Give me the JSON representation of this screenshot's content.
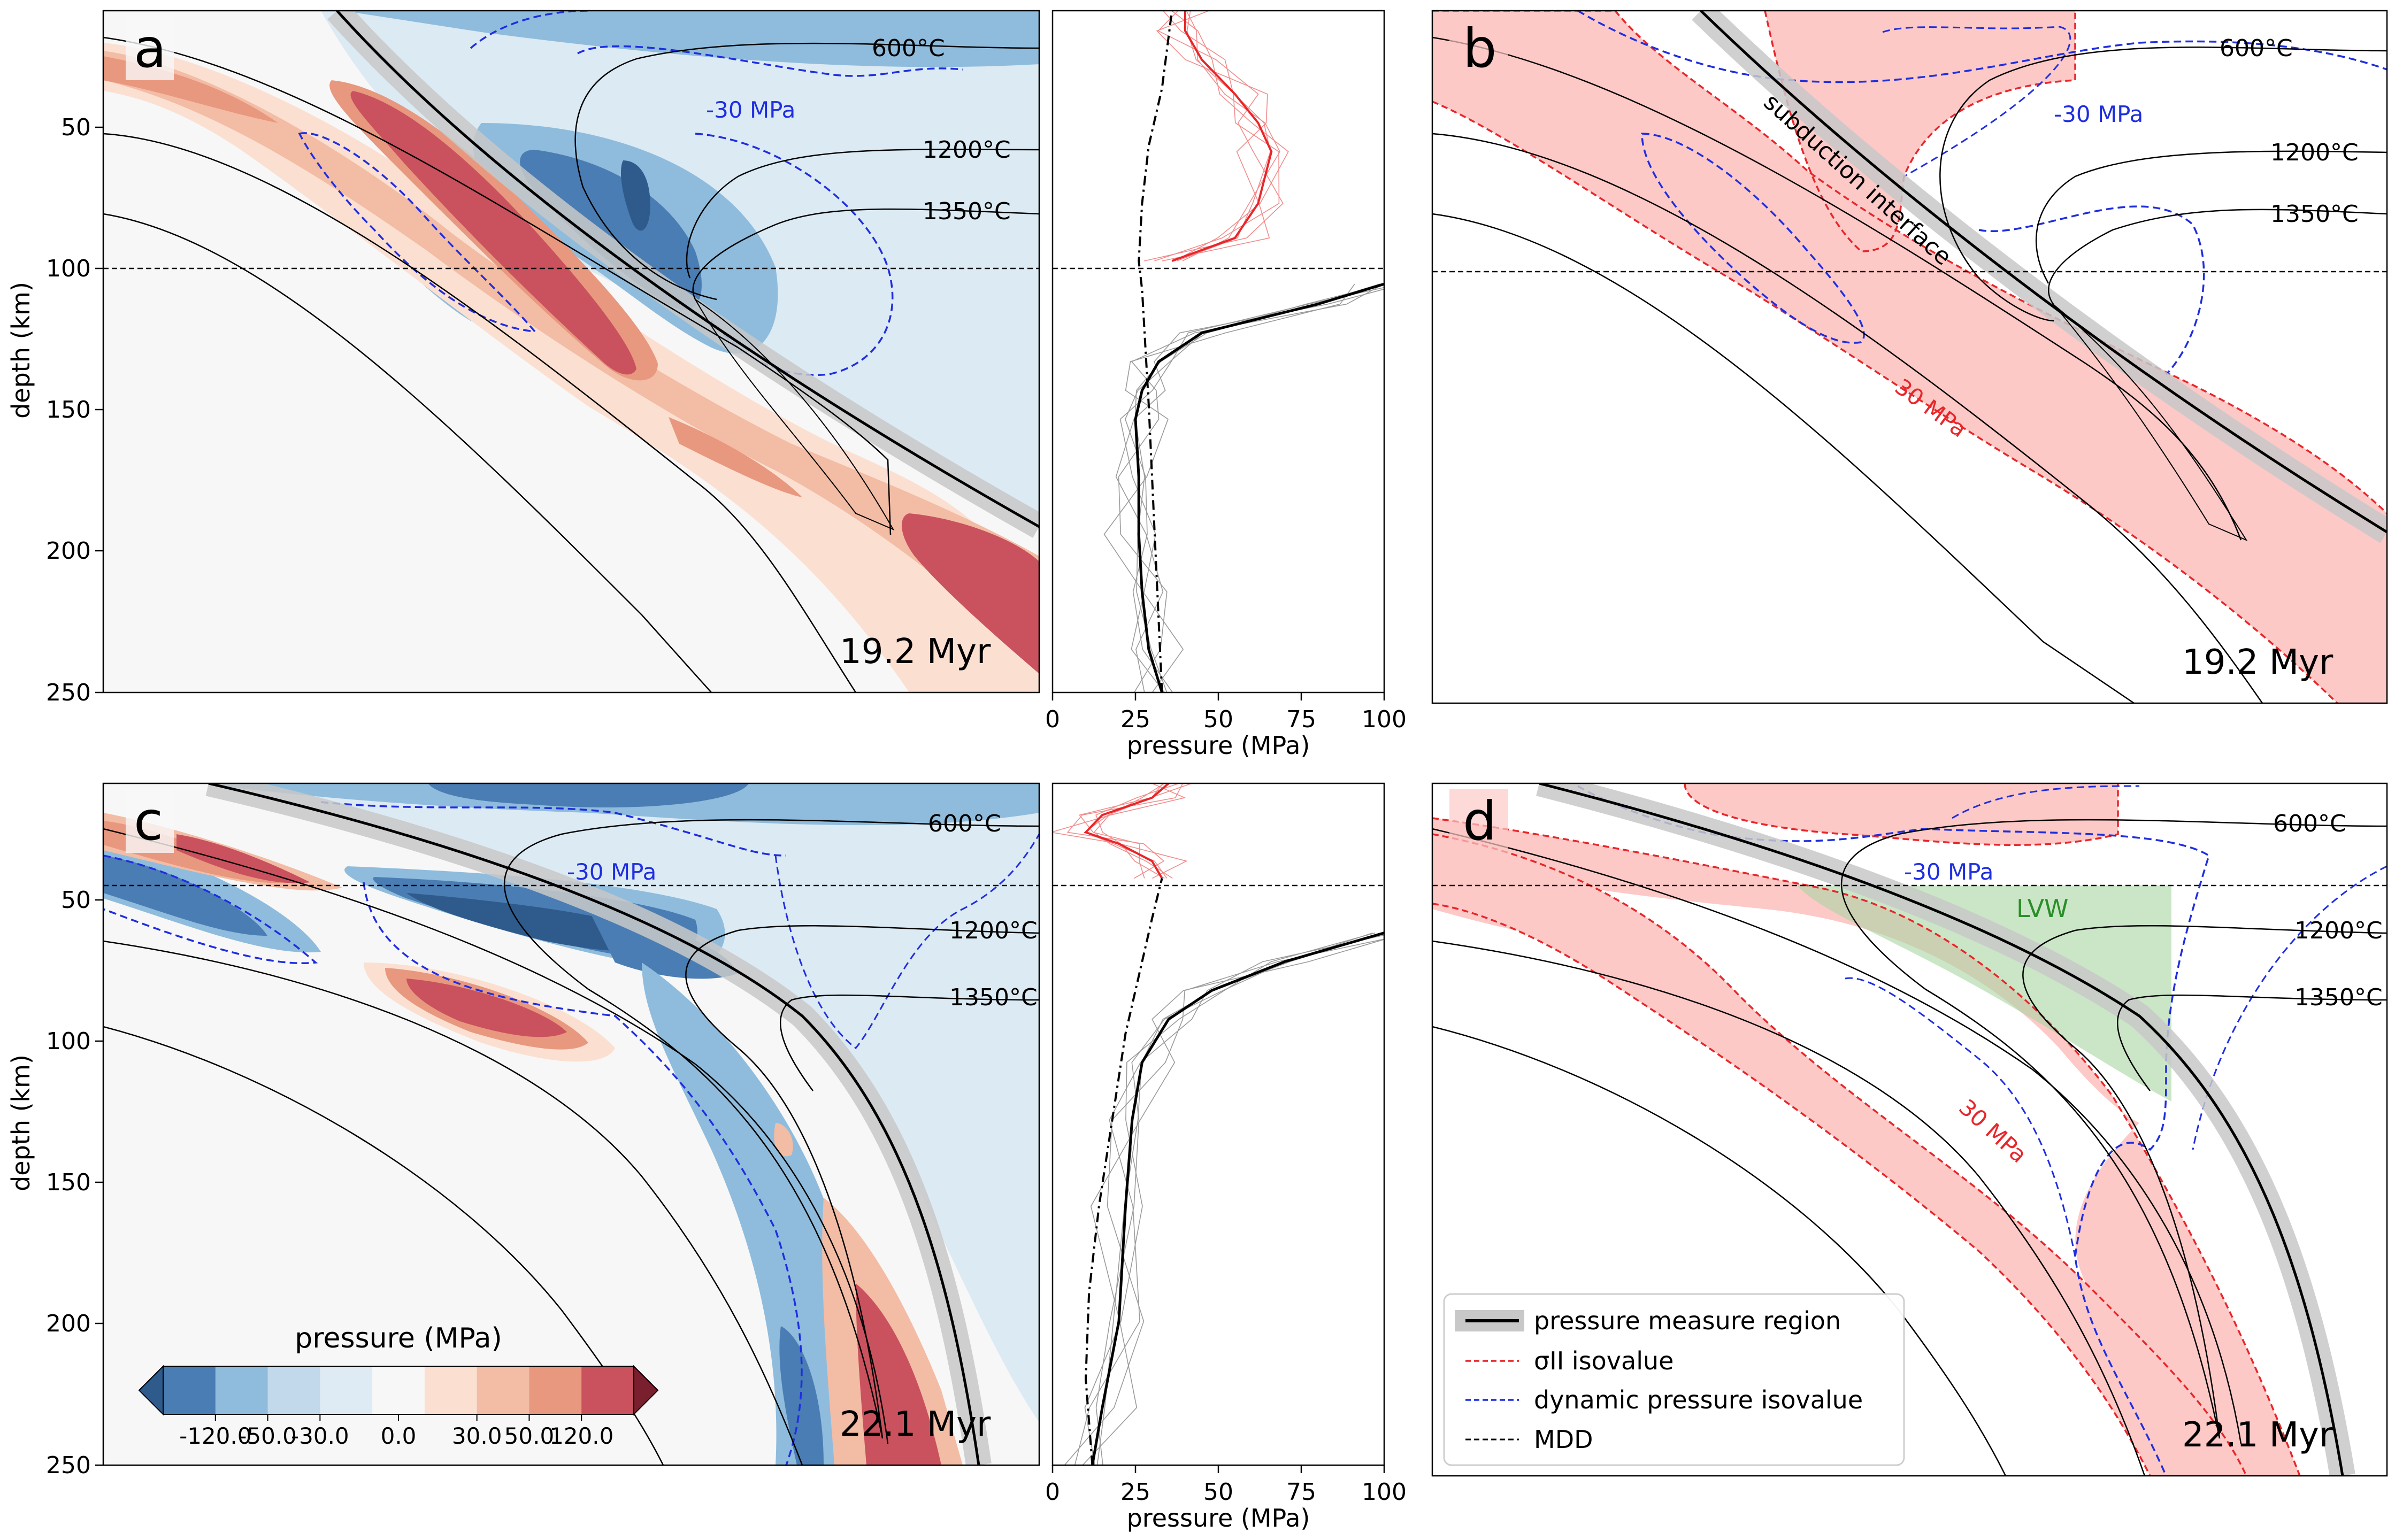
{
  "figure": {
    "panels": [
      {
        "id": "a",
        "letter": "a",
        "time": "19.2 Myr"
      },
      {
        "id": "b",
        "letter": "b",
        "time": "19.2 Myr"
      },
      {
        "id": "c",
        "letter": "c",
        "time": "22.1 Myr"
      },
      {
        "id": "d",
        "letter": "d",
        "time": "22.1 Myr"
      }
    ],
    "isotherm_labels": [
      "600°C",
      "1200°C",
      "1350°C"
    ],
    "dynamic_pressure_label": "-30 MPa",
    "sigma_label": "30 MPa",
    "interface_label": "subduction interface",
    "lvw_label": "LVW",
    "depth_axis": {
      "label": "depth (km)",
      "ticks": [
        50,
        100,
        150,
        200,
        250
      ]
    },
    "pressure_axis": {
      "label": "pressure (MPa)",
      "ticks": [
        0,
        25,
        50,
        75,
        100
      ]
    },
    "colorbar": {
      "title": "pressure (MPa)",
      "tick_labels": [
        "-120.0",
        "-50.0",
        "-30.0",
        "0.0",
        "30.0",
        "50.0",
        "120.0"
      ],
      "colors": [
        "#4a7db3",
        "#8fbcdc",
        "#c1d9ea",
        "#dfebf4",
        "#f7f7f7",
        "#fbe0d2",
        "#f3bca4",
        "#e8987e",
        "#c9525e"
      ],
      "under_color": "#2f5b8c",
      "over_color": "#7a1f2e"
    },
    "legend": {
      "items": [
        {
          "label": "pressure measure region",
          "style": "region"
        },
        {
          "label": "σII isovalue",
          "style": "red-dash"
        },
        {
          "label": "dynamic pressure isovalue",
          "style": "blue-dash"
        },
        {
          "label": "MDD",
          "style": "black-dash"
        }
      ]
    },
    "colors": {
      "positive_dark": "#c9525e",
      "positive_mid": "#e8987e",
      "positive_light": "#f6c8b2",
      "negative_dark": "#2f5b8c",
      "negative_mid": "#4a7db3",
      "negative_light": "#8fbcdc",
      "background_blue": "#dceaf3",
      "sigma_fill": "#fcc9c7",
      "lvw_fill": "#a8d5a2",
      "sigma_line": "#e8262a",
      "dynamic_line": "#1f2ee0"
    }
  },
  "chart_data": [
    {
      "panel": "a",
      "type": "heatmap",
      "time": "19.2 Myr",
      "ylabel": "depth (km)",
      "ylim": [
        250,
        13
      ],
      "mdd_depth_km": 101,
      "isotherms": [
        "600°C",
        "1200°C",
        "1350°C"
      ],
      "contour_label": "-30 MPa"
    },
    {
      "panel": "a-profile",
      "type": "line",
      "xlabel": "pressure (MPa)",
      "xlim": [
        0,
        100
      ],
      "ylim": [
        250,
        13
      ],
      "mdd_depth_km": 101,
      "series": [
        {
          "color": "black",
          "x": [
            33,
            29,
            27,
            26,
            26,
            25,
            27,
            32,
            45,
            80,
            100
          ],
          "y": [
            250,
            235,
            215,
            195,
            175,
            155,
            145,
            135,
            125,
            115,
            108
          ]
        },
        {
          "color": "red",
          "x": [
            36,
            55,
            62,
            66,
            62,
            55,
            45,
            40,
            40
          ],
          "y": [
            100,
            92,
            80,
            62,
            52,
            42,
            30,
            20,
            13
          ]
        },
        {
          "style": "dash-dot",
          "x": [
            33,
            31,
            29,
            27,
            26,
            27,
            29,
            33,
            36
          ],
          "y": [
            250,
            200,
            150,
            110,
            100,
            80,
            60,
            40,
            13
          ]
        }
      ]
    },
    {
      "panel": "b",
      "type": "heatmap",
      "time": "19.2 Myr",
      "mdd_depth_km": 101,
      "isotherms": [
        "600°C",
        "1200°C",
        "1350°C"
      ],
      "contour_labels": [
        "-30 MPa",
        "30 MPa"
      ],
      "annotation": "subduction interface"
    },
    {
      "panel": "c",
      "type": "heatmap",
      "time": "22.1 Myr",
      "ylabel": "depth (km)",
      "ylim": [
        250,
        13
      ],
      "mdd_depth_km": 46,
      "isotherms": [
        "600°C",
        "1200°C",
        "1350°C"
      ],
      "contour_label": "-30 MPa"
    },
    {
      "panel": "c-profile",
      "type": "line",
      "xlabel": "pressure (MPa)",
      "xlim": [
        0,
        100
      ],
      "ylim": [
        250,
        13
      ],
      "mdd_depth_km": 46,
      "series": [
        {
          "color": "black",
          "x": [
            12,
            15,
            20,
            22,
            24,
            27,
            35,
            48,
            70,
            100
          ],
          "y": [
            250,
            230,
            200,
            160,
            130,
            110,
            95,
            85,
            75,
            65
          ]
        },
        {
          "color": "red",
          "x": [
            33,
            30,
            20,
            10,
            15,
            30,
            35
          ],
          "y": [
            46,
            40,
            34,
            30,
            24,
            18,
            13
          ]
        },
        {
          "style": "dash-dot",
          "x": [
            12,
            10,
            11,
            14,
            18,
            22,
            26,
            30,
            33
          ],
          "y": [
            250,
            220,
            190,
            160,
            130,
            100,
            80,
            60,
            46
          ]
        }
      ]
    },
    {
      "panel": "d",
      "type": "heatmap",
      "time": "22.1 Myr",
      "mdd_depth_km": 46,
      "isotherms": [
        "600°C",
        "1200°C",
        "1350°C"
      ],
      "contour_labels": [
        "-30 MPa",
        "30 MPa"
      ],
      "annotation": "LVW"
    }
  ]
}
